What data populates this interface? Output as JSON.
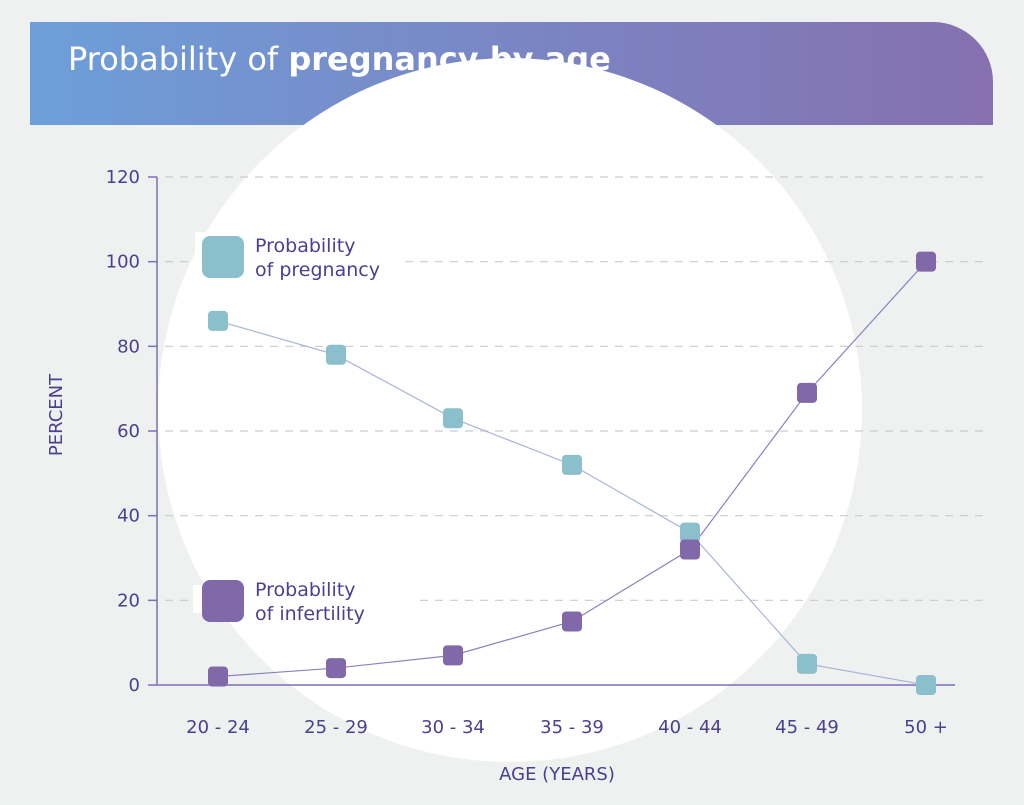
{
  "header": {
    "title_plain": "Probability of ",
    "title_bold": "pregnancy by age"
  },
  "chart_data": {
    "type": "line",
    "title": "Probability of pregnancy by age",
    "xlabel": "AGE (YEARS)",
    "ylabel": "PERCENT",
    "categories": [
      "20 - 24",
      "25 - 29",
      "30 - 34",
      "35 - 39",
      "40 - 44",
      "45 - 49",
      "50 +"
    ],
    "ylim": [
      0,
      120
    ],
    "yticks": [
      0,
      20,
      40,
      60,
      80,
      100,
      120
    ],
    "grid": true,
    "legend_placement": "inside-left",
    "series": [
      {
        "name": "Probability of pregnancy",
        "legend_lines": [
          "Probability",
          "of pregnancy"
        ],
        "color": "#8bbfcc",
        "values": [
          86,
          78,
          63,
          52,
          36,
          5,
          0
        ]
      },
      {
        "name": "Probability of infertility",
        "legend_lines": [
          "Probability",
          "of infertility"
        ],
        "color": "#8068a9",
        "values": [
          2,
          4,
          7,
          15,
          32,
          69,
          100
        ]
      }
    ]
  }
}
